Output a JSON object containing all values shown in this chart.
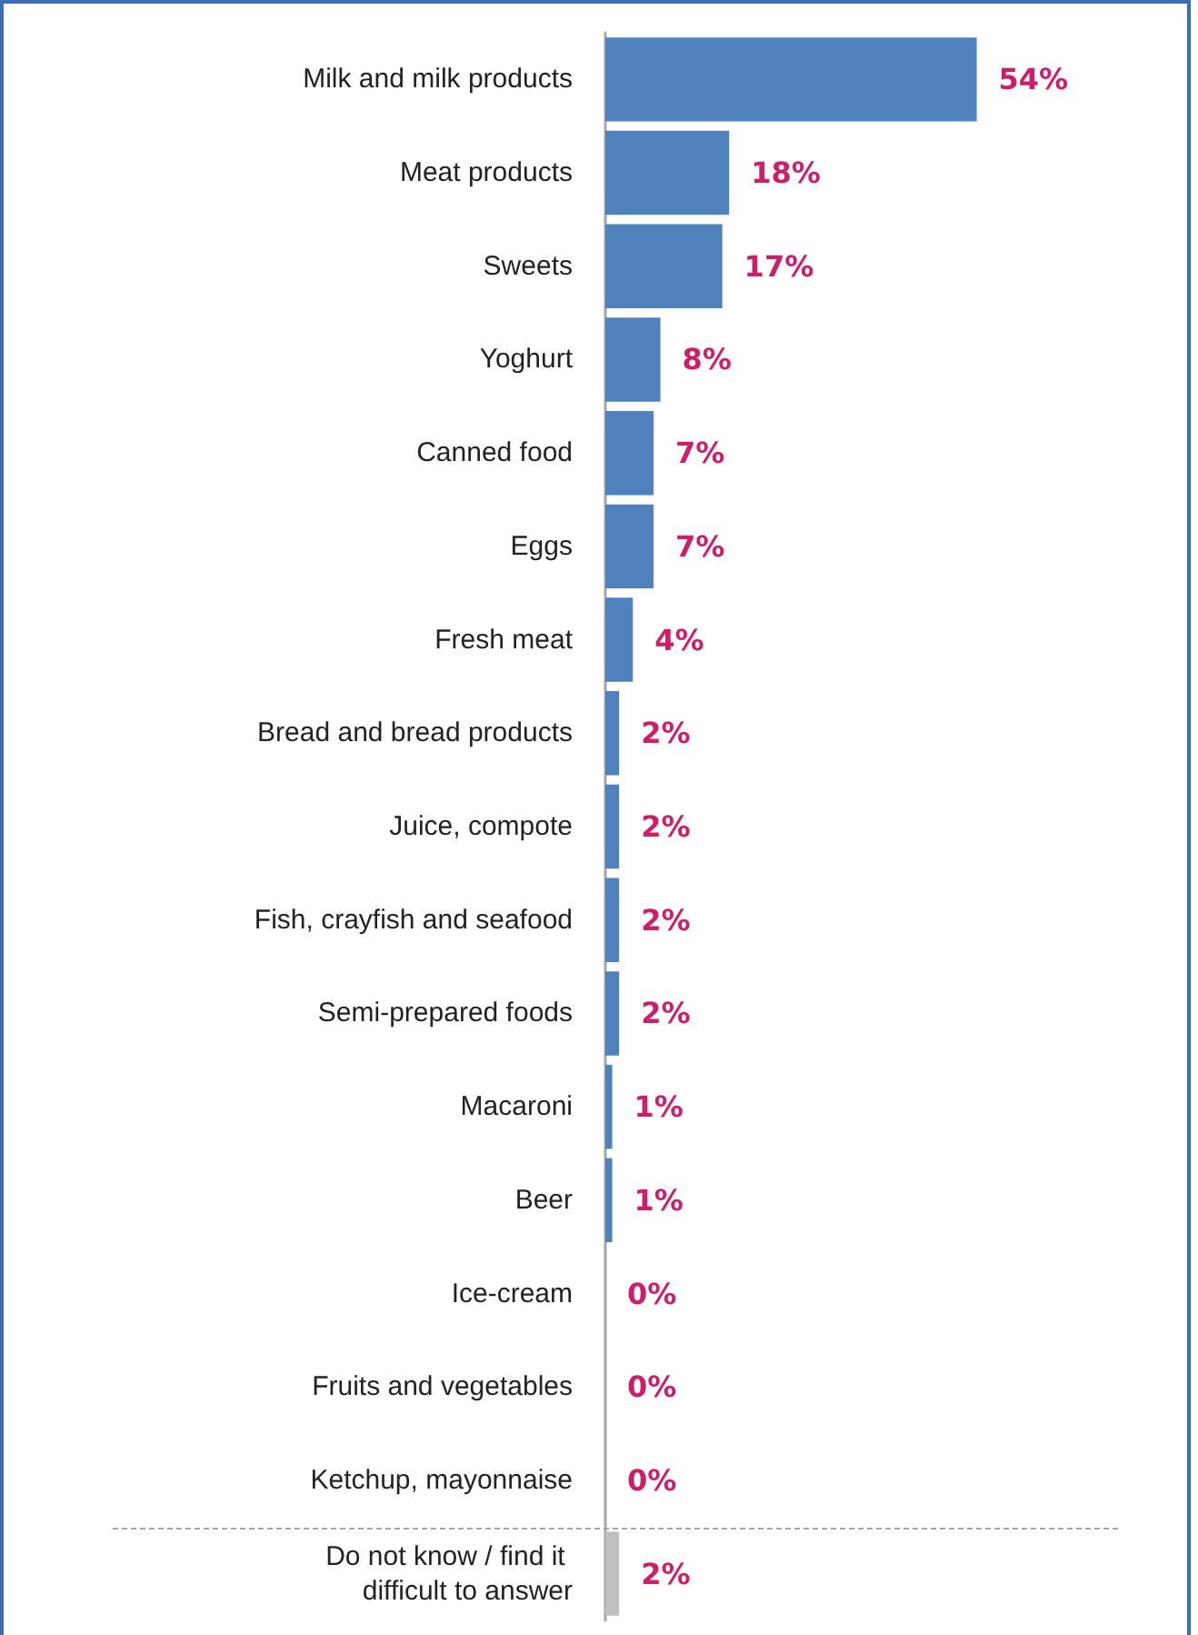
{
  "chart_data": {
    "type": "bar",
    "orientation": "horizontal",
    "categories": [
      "Milk and milk products",
      "Meat products",
      "Sweets",
      "Yoghurt",
      "Canned food",
      "Eggs",
      "Fresh meat",
      "Bread and bread products",
      "Juice, compote",
      "Fish, crayfish and seafood",
      "Semi-prepared foods",
      "Macaroni",
      "Beer",
      "Ice-cream",
      "Fruits and vegetables",
      "Ketchup, mayonnaise",
      "Do not know / find it difficult to answer"
    ],
    "values": [
      54,
      18,
      17,
      8,
      7,
      7,
      4,
      2,
      2,
      2,
      2,
      1,
      1,
      0,
      0,
      0,
      2
    ],
    "colors": [
      "#4f81bd",
      "#4f81bd",
      "#4f81bd",
      "#4f81bd",
      "#4f81bd",
      "#4f81bd",
      "#4f81bd",
      "#4f81bd",
      "#4f81bd",
      "#4f81bd",
      "#4f81bd",
      "#4f81bd",
      "#4f81bd",
      "#4f81bd",
      "#4f81bd",
      "#4f81bd",
      "#bfbfbf"
    ],
    "value_labels": [
      "54%",
      "18%",
      "17%",
      "8%",
      "7%",
      "7%",
      "4%",
      "2%",
      "2%",
      "2%",
      "2%",
      "1%",
      "1%",
      "0%",
      "0%",
      "0%",
      "2%"
    ]
  }
}
